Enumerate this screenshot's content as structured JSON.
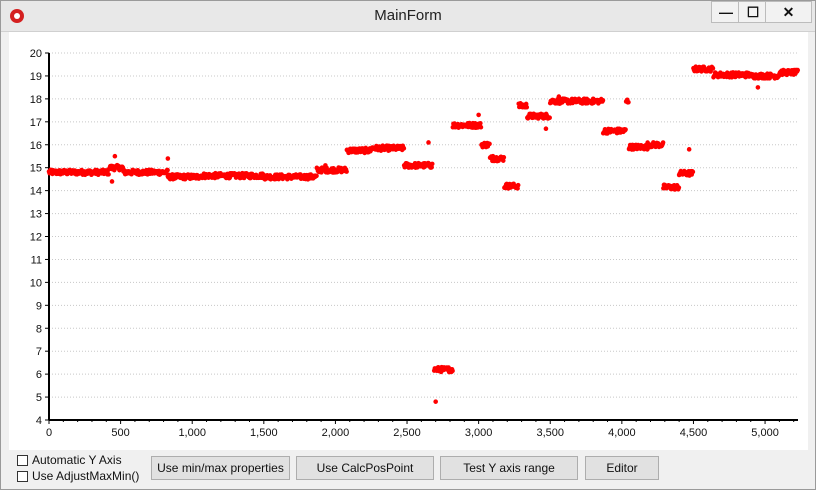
{
  "window": {
    "title": "MainForm",
    "minimize_glyph": "—",
    "maximize_glyph": "☐",
    "close_glyph": "✕"
  },
  "controls": {
    "auto_y_axis": {
      "label": "Automatic Y Axis",
      "checked": false
    },
    "use_adjust": {
      "label": "Use AdjustMaxMin()",
      "checked": false
    },
    "buttons": [
      "Use min/max properties",
      "Use CalcPosPoint",
      "Test Y axis range",
      "Editor"
    ]
  },
  "colors": {
    "series": "#ff0000",
    "grid": "#c8c8c8"
  },
  "chart_data": {
    "type": "scatter",
    "xlim": [
      0,
      5230
    ],
    "ylim": [
      4,
      20
    ],
    "x_ticks": [
      0,
      500,
      1000,
      1500,
      2000,
      2500,
      3000,
      3500,
      4000,
      4500,
      5000
    ],
    "x_tick_labels": [
      "0",
      "500",
      "1,000",
      "1,500",
      "2,000",
      "2,500",
      "3,000",
      "3,500",
      "4,000",
      "4,500",
      "5,000"
    ],
    "y_ticks": [
      4,
      5,
      6,
      7,
      8,
      9,
      10,
      11,
      12,
      13,
      14,
      15,
      16,
      17,
      18,
      19,
      20
    ],
    "y_tick_labels": [
      "4",
      "5",
      "6",
      "7",
      "8",
      "9",
      "10",
      "11",
      "12",
      "13",
      "14",
      "15",
      "16",
      "17",
      "18",
      "19",
      "20"
    ],
    "grid": "horizontal dotted",
    "segments": [
      [
        0,
        420,
        14.8
      ],
      [
        420,
        520,
        15.0
      ],
      [
        520,
        830,
        14.8
      ],
      [
        830,
        1050,
        14.6
      ],
      [
        1050,
        1500,
        14.65
      ],
      [
        1500,
        1870,
        14.6
      ],
      [
        1870,
        2080,
        14.9
      ],
      [
        2080,
        2250,
        15.75
      ],
      [
        2250,
        2480,
        15.85
      ],
      [
        2480,
        2680,
        15.1
      ],
      [
        2690,
        2820,
        6.2
      ],
      [
        2820,
        3020,
        16.85
      ],
      [
        3020,
        3080,
        16.0
      ],
      [
        3080,
        3180,
        15.4
      ],
      [
        3180,
        3280,
        14.2
      ],
      [
        3280,
        3340,
        17.7
      ],
      [
        3340,
        3500,
        17.25
      ],
      [
        3500,
        3600,
        17.9
      ],
      [
        3600,
        3870,
        17.9
      ],
      [
        3870,
        4030,
        16.6
      ],
      [
        4030,
        4050,
        17.9
      ],
      [
        4050,
        4180,
        15.9
      ],
      [
        4180,
        4290,
        16.0
      ],
      [
        4290,
        4400,
        14.15
      ],
      [
        4400,
        4500,
        14.75
      ],
      [
        4500,
        4640,
        19.3
      ],
      [
        4640,
        4900,
        19.05
      ],
      [
        4900,
        5100,
        19.0
      ],
      [
        5100,
        5230,
        19.15
      ]
    ],
    "outliers": [
      [
        2700,
        4.8
      ],
      [
        440,
        14.4
      ],
      [
        460,
        15.5
      ],
      [
        830,
        15.4
      ],
      [
        1930,
        15.1
      ],
      [
        2650,
        16.1
      ],
      [
        3470,
        16.7
      ],
      [
        3560,
        18.1
      ],
      [
        4470,
        15.8
      ],
      [
        4950,
        18.5
      ],
      [
        3000,
        17.3
      ],
      [
        3100,
        15.5
      ]
    ]
  }
}
